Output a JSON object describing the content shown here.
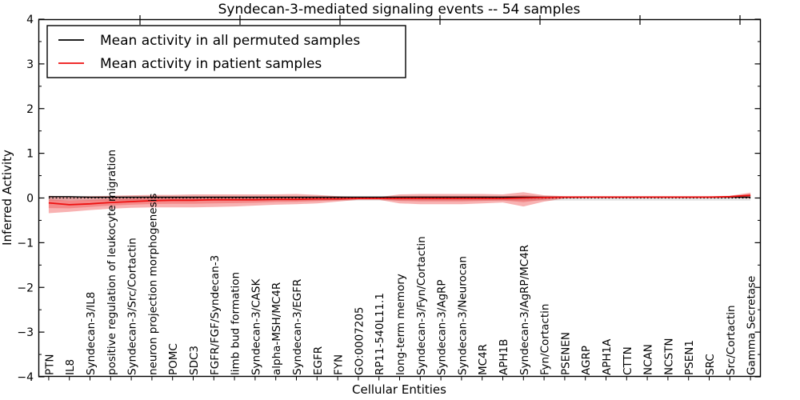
{
  "figure": {
    "background": "#ffffff"
  },
  "chart_data": {
    "type": "line",
    "title": "Syndecan-3-mediated signaling events -- 54 samples",
    "xlabel": "Cellular Entities",
    "ylabel": "Inferred Activity",
    "ylim": [
      -4,
      4
    ],
    "yticks": [
      -4,
      -3,
      -2,
      -1,
      0,
      1,
      2,
      3,
      4
    ],
    "ytick_labels": [
      "−4",
      "−3",
      "−2",
      "−1",
      "0",
      "1",
      "2",
      "3",
      "4"
    ],
    "yminor_step": 0.5,
    "grid": false,
    "legend_position": "upper-left",
    "zero_line": {
      "style": "dotted",
      "color": "#000000",
      "y": 0
    },
    "colors": {
      "permuted_line": "#000000",
      "permuted_band": "#bebebe",
      "patient_line": "#ee1111",
      "patient_band": "#e81010",
      "spine": "#000000"
    },
    "categories": [
      "PTN",
      "IL8",
      "Syndecan-3/IL8",
      "positive regulation of leukocyte migration",
      "Syndecan-3/Src/Cortactin",
      "neuron projection morphogenesis",
      "POMC",
      "SDC3",
      "FGFR/FGF/Syndecan-3",
      "limb bud formation",
      "Syndecan-3/CASK",
      "alpha-MSH/MC4R",
      "Syndecan-3/EGFR",
      "EGFR",
      "FYN",
      "GO:0007205",
      "RP11-540L11.1",
      "long-term memory",
      "Syndecan-3/Fyn/Cortactin",
      "Syndecan-3/AgRP",
      "Syndecan-3/Neurocan",
      "MC4R",
      "APH1B",
      "Syndecan-3/AgRP/MC4R",
      "Fyn/Cortactin",
      "PSENEN",
      "AGRP",
      "APH1A",
      "CTTN",
      "NCAN",
      "NCSTN",
      "PSEN1",
      "SRC",
      "Src/Cortactin",
      "Gamma Secretase"
    ],
    "series": [
      {
        "name": "Mean activity in all permuted samples",
        "color": "#000000",
        "values": [
          0.03,
          0.03,
          0.02,
          0.02,
          0.02,
          0.02,
          0.02,
          0.02,
          0.02,
          0.02,
          0.02,
          0.02,
          0.02,
          0.02,
          0.02,
          0.02,
          0.02,
          0.02,
          0.02,
          0.02,
          0.02,
          0.02,
          0.02,
          0.02,
          0.02,
          0.02,
          0.02,
          0.02,
          0.02,
          0.02,
          0.02,
          0.02,
          0.02,
          0.02,
          0.02
        ],
        "band_lower": [
          -0.06,
          -0.06,
          -0.06,
          -0.06,
          -0.06,
          -0.06,
          -0.06,
          -0.06,
          -0.06,
          -0.06,
          -0.06,
          -0.06,
          -0.06,
          -0.06,
          -0.06,
          -0.06,
          -0.06,
          -0.06,
          -0.06,
          -0.06,
          -0.06,
          -0.06,
          -0.06,
          -0.06,
          -0.06,
          -0.06,
          -0.06,
          -0.06,
          -0.06,
          -0.06,
          -0.06,
          -0.06,
          -0.06,
          -0.06,
          -0.06
        ],
        "band_upper": [
          0.04,
          0.04,
          0.04,
          0.04,
          0.04,
          0.04,
          0.04,
          0.04,
          0.04,
          0.04,
          0.04,
          0.04,
          0.04,
          0.04,
          0.04,
          0.04,
          0.04,
          0.04,
          0.04,
          0.04,
          0.04,
          0.04,
          0.04,
          0.04,
          0.04,
          0.04,
          0.04,
          0.04,
          0.04,
          0.04,
          0.04,
          0.04,
          0.04,
          0.04,
          0.04
        ]
      },
      {
        "name": "Mean activity in patient samples",
        "color": "#ee1111",
        "values": [
          -0.11,
          -0.15,
          -0.13,
          -0.1,
          -0.08,
          -0.06,
          -0.05,
          -0.05,
          -0.04,
          -0.04,
          -0.04,
          -0.03,
          -0.03,
          -0.02,
          -0.02,
          -0.01,
          -0.01,
          -0.01,
          -0.01,
          -0.01,
          -0.01,
          -0.01,
          -0.01,
          0.0,
          0.01,
          0.02,
          0.02,
          0.02,
          0.02,
          0.02,
          0.02,
          0.02,
          0.02,
          0.03,
          0.06
        ],
        "band_lower": [
          -0.34,
          -0.31,
          -0.27,
          -0.24,
          -0.22,
          -0.21,
          -0.21,
          -0.21,
          -0.2,
          -0.19,
          -0.17,
          -0.15,
          -0.14,
          -0.12,
          -0.08,
          -0.04,
          -0.04,
          -0.12,
          -0.14,
          -0.14,
          -0.14,
          -0.12,
          -0.1,
          -0.19,
          -0.08,
          -0.01,
          0.0,
          0.0,
          0.0,
          0.0,
          0.0,
          0.0,
          0.0,
          0.0,
          -0.01
        ],
        "band_upper": [
          0.05,
          0.03,
          0.04,
          0.05,
          0.06,
          0.07,
          0.07,
          0.08,
          0.08,
          0.08,
          0.08,
          0.08,
          0.09,
          0.07,
          0.04,
          0.02,
          0.02,
          0.08,
          0.09,
          0.09,
          0.09,
          0.09,
          0.08,
          0.13,
          0.06,
          0.04,
          0.04,
          0.04,
          0.04,
          0.04,
          0.04,
          0.04,
          0.04,
          0.05,
          0.12
        ]
      }
    ]
  }
}
